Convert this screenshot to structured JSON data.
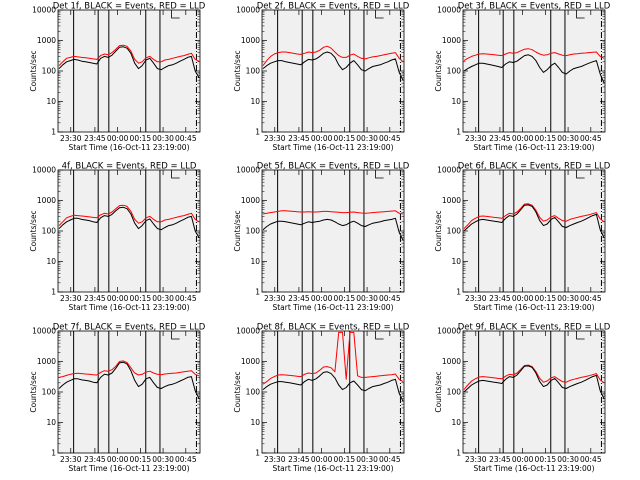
{
  "figure": {
    "x_tick_labels": [
      "23:30",
      "23:45",
      "00:00",
      "00:15",
      "00:30",
      "00:45"
    ],
    "y_tick_labels": [
      "1",
      "10",
      "100",
      "1000",
      "10000"
    ],
    "y_label": "Counts/sec",
    "x_label": "Start Time (16-Oct-11 23:19:00)",
    "colors": {
      "events": "#000000",
      "lld": "#ff0000",
      "background": "#f0f0f0"
    }
  },
  "chart_data": [
    {
      "type": "line",
      "title": "Det 1f, BLACK = Events, RED = LLD",
      "ylim": [
        1,
        10000
      ],
      "yscale": "log",
      "series": [
        {
          "values": [
            120,
            160,
            200,
            220,
            240,
            230,
            210,
            200,
            190,
            180,
            170,
            260,
            300,
            280,
            330,
            450,
            600,
            620,
            560,
            380,
            180,
            120,
            150,
            230,
            260,
            180,
            120,
            110,
            130,
            150,
            160,
            180,
            210,
            240,
            280,
            300,
            100,
            60
          ]
        },
        {
          "values": [
            150,
            200,
            260,
            280,
            300,
            290,
            280,
            270,
            260,
            250,
            240,
            320,
            360,
            340,
            400,
            520,
            680,
            700,
            640,
            450,
            240,
            180,
            200,
            270,
            300,
            240,
            200,
            200,
            230,
            240,
            260,
            280,
            300,
            320,
            350,
            380,
            240,
            210
          ]
        }
      ]
    },
    {
      "type": "line",
      "title": "Det 2f, BLACK = Events, RED = LLD",
      "ylim": [
        1,
        10000
      ],
      "yscale": "log",
      "series": [
        {
          "values": [
            120,
            150,
            180,
            200,
            220,
            220,
            200,
            190,
            180,
            170,
            160,
            200,
            240,
            230,
            250,
            300,
            380,
            420,
            380,
            280,
            160,
            110,
            130,
            180,
            220,
            160,
            110,
            100,
            120,
            140,
            150,
            160,
            180,
            200,
            230,
            250,
            90,
            50
          ]
        },
        {
          "values": [
            150,
            220,
            300,
            360,
            400,
            420,
            420,
            400,
            380,
            360,
            350,
            380,
            420,
            400,
            420,
            480,
            600,
            650,
            560,
            420,
            320,
            280,
            280,
            330,
            360,
            300,
            260,
            250,
            270,
            290,
            300,
            320,
            340,
            360,
            380,
            400,
            260,
            200
          ]
        }
      ]
    },
    {
      "type": "line",
      "title": "Det 3f, BLACK = Events, RED = LLD",
      "ylim": [
        1,
        10000
      ],
      "yscale": "log",
      "series": [
        {
          "values": [
            100,
            120,
            140,
            160,
            180,
            180,
            170,
            160,
            150,
            140,
            130,
            170,
            200,
            190,
            210,
            260,
            320,
            340,
            300,
            220,
            130,
            90,
            110,
            150,
            180,
            130,
            90,
            80,
            100,
            120,
            130,
            140,
            160,
            180,
            200,
            220,
            80,
            40
          ]
        },
        {
          "values": [
            220,
            260,
            300,
            330,
            360,
            370,
            360,
            350,
            340,
            330,
            320,
            360,
            400,
            380,
            400,
            460,
            520,
            540,
            500,
            420,
            360,
            330,
            340,
            380,
            400,
            360,
            330,
            320,
            340,
            360,
            370,
            380,
            390,
            400,
            410,
            420,
            300,
            260
          ]
        }
      ]
    },
    {
      "type": "line",
      "title": "4f, BLACK = Events, RED = LLD",
      "ylim": [
        1,
        10000
      ],
      "yscale": "log",
      "series": [
        {
          "values": [
            120,
            160,
            200,
            230,
            260,
            260,
            240,
            230,
            220,
            200,
            190,
            270,
            320,
            300,
            350,
            460,
            580,
            600,
            540,
            360,
            180,
            120,
            150,
            220,
            250,
            170,
            120,
            110,
            130,
            150,
            160,
            180,
            210,
            240,
            280,
            300,
            100,
            60
          ]
        },
        {
          "values": [
            150,
            200,
            270,
            300,
            330,
            320,
            310,
            300,
            290,
            280,
            270,
            340,
            380,
            360,
            420,
            540,
            680,
            700,
            640,
            440,
            240,
            180,
            200,
            270,
            300,
            240,
            200,
            200,
            230,
            240,
            260,
            280,
            300,
            320,
            350,
            380,
            240,
            200
          ]
        }
      ]
    },
    {
      "type": "line",
      "title": "Det 5f, BLACK = Events, RED = LLD",
      "ylim": [
        1,
        10000
      ],
      "yscale": "log",
      "series": [
        {
          "values": [
            110,
            140,
            170,
            190,
            210,
            210,
            200,
            190,
            180,
            170,
            160,
            180,
            200,
            190,
            200,
            210,
            230,
            240,
            230,
            200,
            170,
            150,
            160,
            190,
            210,
            180,
            150,
            140,
            160,
            180,
            190,
            200,
            220,
            230,
            240,
            260,
            90,
            50
          ]
        },
        {
          "values": [
            360,
            380,
            400,
            420,
            440,
            460,
            460,
            450,
            440,
            430,
            420,
            420,
            430,
            420,
            420,
            430,
            440,
            440,
            430,
            420,
            410,
            400,
            400,
            410,
            420,
            400,
            390,
            380,
            390,
            400,
            410,
            420,
            430,
            440,
            450,
            460,
            380,
            360
          ]
        }
      ]
    },
    {
      "type": "line",
      "title": "Det 6f, BLACK = Events, RED = LLD",
      "ylim": [
        1,
        10000
      ],
      "yscale": "log",
      "series": [
        {
          "values": [
            100,
            130,
            170,
            200,
            230,
            240,
            230,
            220,
            210,
            200,
            190,
            260,
            320,
            300,
            360,
            500,
            700,
            720,
            640,
            420,
            220,
            150,
            170,
            240,
            280,
            200,
            140,
            130,
            150,
            170,
            190,
            210,
            240,
            280,
            320,
            350,
            110,
            60
          ]
        },
        {
          "values": [
            120,
            160,
            220,
            260,
            300,
            310,
            300,
            290,
            280,
            270,
            260,
            320,
            380,
            360,
            420,
            560,
            760,
            780,
            700,
            480,
            280,
            210,
            230,
            290,
            320,
            260,
            220,
            210,
            240,
            260,
            280,
            300,
            320,
            340,
            370,
            400,
            250,
            200
          ]
        }
      ]
    },
    {
      "type": "line",
      "title": "Det 7f, BLACK = Events, RED = LLD",
      "ylim": [
        1,
        10000
      ],
      "yscale": "log",
      "series": [
        {
          "values": [
            130,
            170,
            210,
            240,
            270,
            270,
            250,
            240,
            230,
            210,
            200,
            300,
            380,
            360,
            420,
            600,
            900,
            950,
            820,
            500,
            240,
            150,
            180,
            270,
            300,
            200,
            140,
            130,
            150,
            170,
            180,
            200,
            230,
            260,
            300,
            320,
            110,
            60
          ]
        },
        {
          "values": [
            300,
            320,
            350,
            380,
            400,
            410,
            400,
            390,
            380,
            370,
            360,
            440,
            500,
            480,
            540,
            700,
            1000,
            1050,
            920,
            620,
            420,
            360,
            380,
            450,
            480,
            420,
            380,
            370,
            390,
            400,
            410,
            420,
            440,
            460,
            480,
            500,
            380,
            340
          ]
        }
      ]
    },
    {
      "type": "line",
      "title": "Det 8f, BLACK = Events, RED = LLD",
      "ylim": [
        1,
        10000
      ],
      "yscale": "log",
      "series": [
        {
          "values": [
            120,
            150,
            180,
            200,
            220,
            220,
            210,
            200,
            190,
            180,
            170,
            220,
            260,
            240,
            270,
            340,
            440,
            460,
            400,
            290,
            170,
            120,
            140,
            200,
            230,
            170,
            120,
            110,
            130,
            150,
            160,
            170,
            190,
            210,
            240,
            260,
            90,
            50
          ]
        },
        {
          "values": [
            180,
            220,
            280,
            320,
            360,
            370,
            360,
            350,
            340,
            330,
            320,
            380,
            420,
            400,
            420,
            520,
            660,
            680,
            620,
            460,
            9000,
            9000,
            260,
            9000,
            9000,
            340,
            300,
            300,
            310,
            320,
            330,
            340,
            350,
            360,
            370,
            390,
            260,
            220
          ]
        }
      ]
    },
    {
      "type": "line",
      "title": "Det 9f, BLACK = Events, RED = LLD",
      "ylim": [
        1,
        10000
      ],
      "yscale": "log",
      "series": [
        {
          "values": [
            100,
            130,
            170,
            200,
            230,
            240,
            230,
            220,
            210,
            200,
            190,
            260,
            320,
            300,
            360,
            500,
            700,
            720,
            640,
            420,
            220,
            150,
            170,
            240,
            280,
            200,
            140,
            130,
            150,
            170,
            190,
            210,
            240,
            280,
            320,
            350,
            110,
            60
          ]
        },
        {
          "values": [
            120,
            170,
            230,
            270,
            310,
            320,
            310,
            300,
            290,
            280,
            270,
            330,
            380,
            360,
            420,
            560,
            740,
            760,
            680,
            470,
            280,
            210,
            230,
            290,
            320,
            260,
            220,
            210,
            240,
            260,
            280,
            300,
            320,
            340,
            370,
            400,
            250,
            200
          ]
        }
      ]
    }
  ]
}
